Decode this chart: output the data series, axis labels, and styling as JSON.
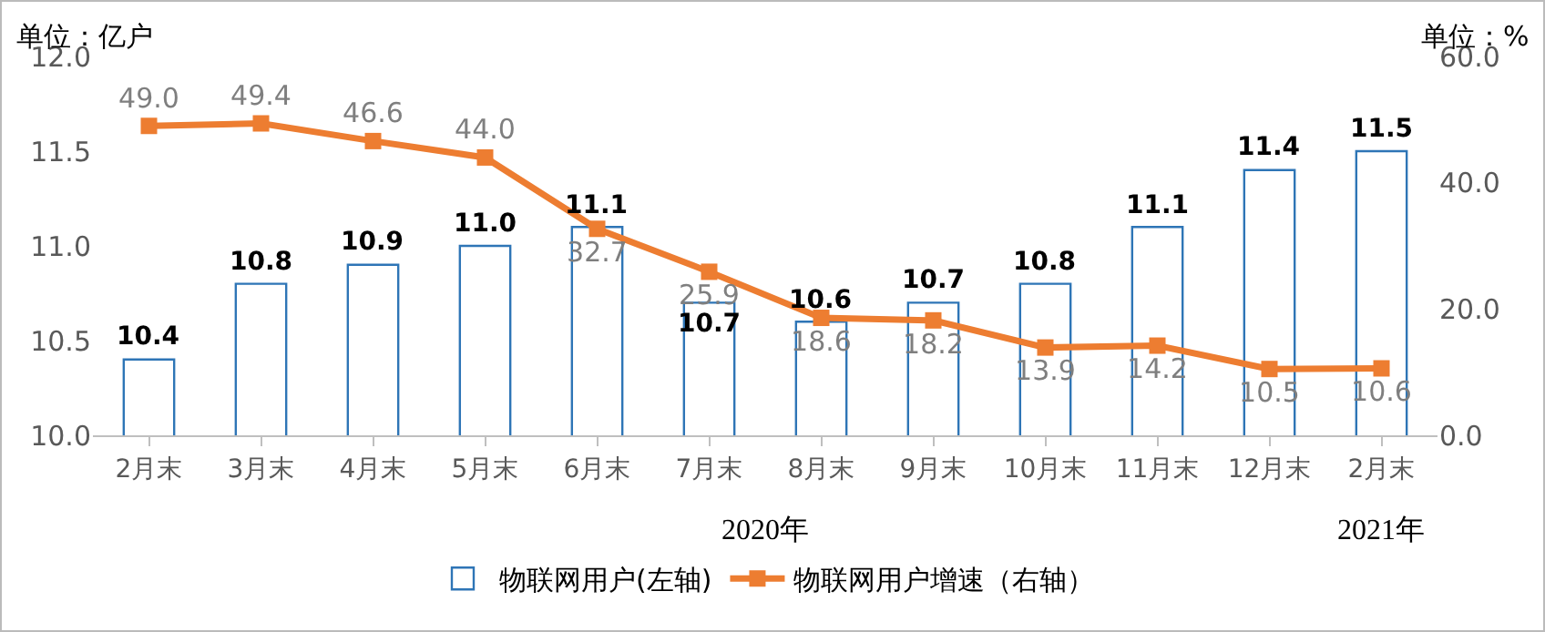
{
  "chart_data": {
    "type": "bar",
    "ylabel": "单位：亿户",
    "y2label": "单位：%",
    "categories": [
      "2月末",
      "3月末",
      "4月末",
      "5月末",
      "6月末",
      "7月末",
      "8月末",
      "9月末",
      "10月末",
      "11月末",
      "12月末",
      "2月末"
    ],
    "series": [
      {
        "name": "物联网用户(左轴)",
        "color": "#2e75b6",
        "values": [
          10.4,
          10.8,
          10.9,
          11.0,
          11.1,
          10.7,
          10.6,
          10.7,
          10.8,
          11.1,
          11.4,
          11.5
        ],
        "value_labels": [
          "10.4",
          "10.8",
          "10.9",
          "11.0",
          "11.1",
          "10.7",
          "10.6",
          "10.7",
          "10.8",
          "11.1",
          "11.4",
          "11.5"
        ]
      },
      {
        "name": "物联网用户增速（右轴）",
        "type": "line",
        "axis": "y2",
        "color": "#ed7d31",
        "marker": "square",
        "line_style": "solid",
        "values": [
          49.0,
          49.4,
          46.6,
          44.0,
          32.7,
          25.9,
          18.6,
          18.2,
          13.9,
          14.2,
          10.5,
          10.6
        ],
        "value_labels": [
          "49.0",
          "49.4",
          "46.6",
          "44.0",
          "32.7",
          "25.9",
          "18.6",
          "18.2",
          "13.9",
          "14.2",
          "10.5",
          "10.6"
        ]
      }
    ],
    "ylim": [
      10.0,
      12.0
    ],
    "yticks": [
      {
        "value": 10,
        "label": "10.0"
      },
      10.5,
      {
        "value": 11,
        "label": "11.0"
      },
      11.5,
      {
        "value": 12,
        "label": "12.0"
      }
    ],
    "y2lim": [
      0,
      60
    ],
    "y2ticks": [
      {
        "value": 0,
        "label": "0.0"
      },
      {
        "value": 20,
        "label": "20.0"
      },
      {
        "value": 40,
        "label": "40.0"
      },
      {
        "value": 60,
        "label": "60.0"
      }
    ],
    "annotations": [
      "2020年",
      "2021年"
    ],
    "grid": false,
    "legend": "bottom"
  }
}
